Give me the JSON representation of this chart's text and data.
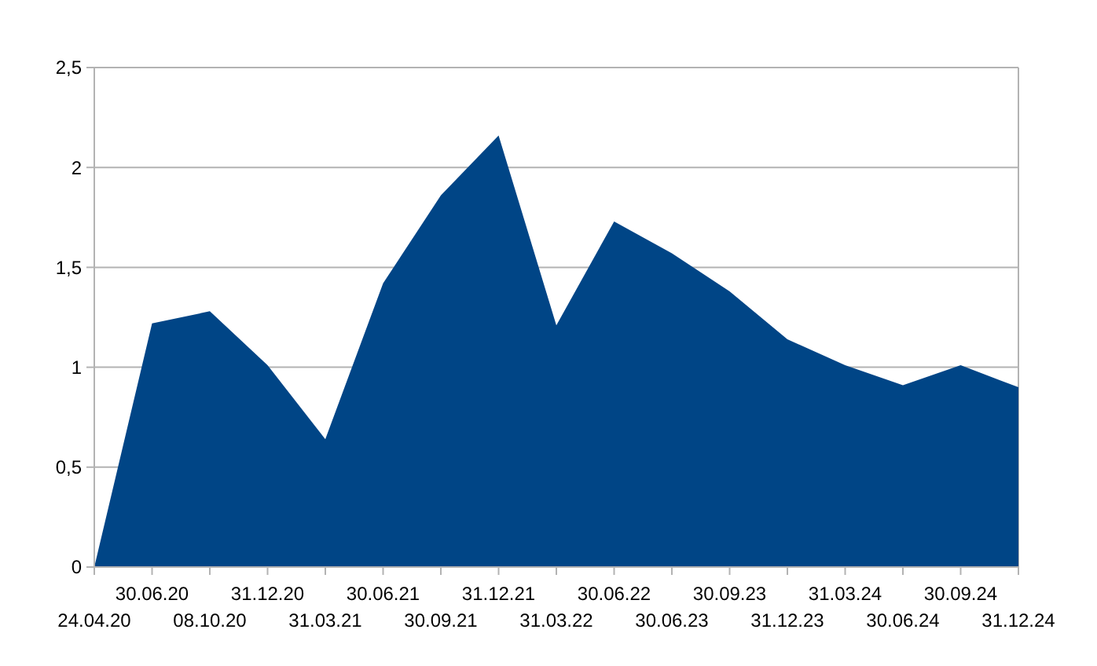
{
  "chart_data": {
    "type": "area",
    "categories": [
      "24.04.20",
      "30.06.20",
      "08.10.20",
      "31.12.20",
      "31.03.21",
      "30.06.21",
      "30.09.21",
      "31.12.21",
      "31.03.22",
      "30.06.22",
      "30.06.23",
      "30.09.23",
      "31.12.23",
      "31.03.24",
      "30.06.24",
      "30.09.24",
      "31.12.24"
    ],
    "series": [
      {
        "color": "#004586",
        "values": [
          0,
          1.22,
          1.28,
          1.01,
          0.64,
          1.42,
          1.86,
          2.16,
          1.21,
          1.73,
          1.57,
          1.38,
          1.14,
          1.01,
          0.91,
          1.01,
          0.9
        ]
      }
    ],
    "ylim": [
      0,
      2.5
    ],
    "yticks": [
      0,
      {
        "value": 0.5,
        "label": "0,5"
      },
      1,
      {
        "value": 1.5,
        "label": "1,5"
      },
      2,
      {
        "value": 2.5,
        "label": "2,5"
      }
    ],
    "grid": "y"
  }
}
